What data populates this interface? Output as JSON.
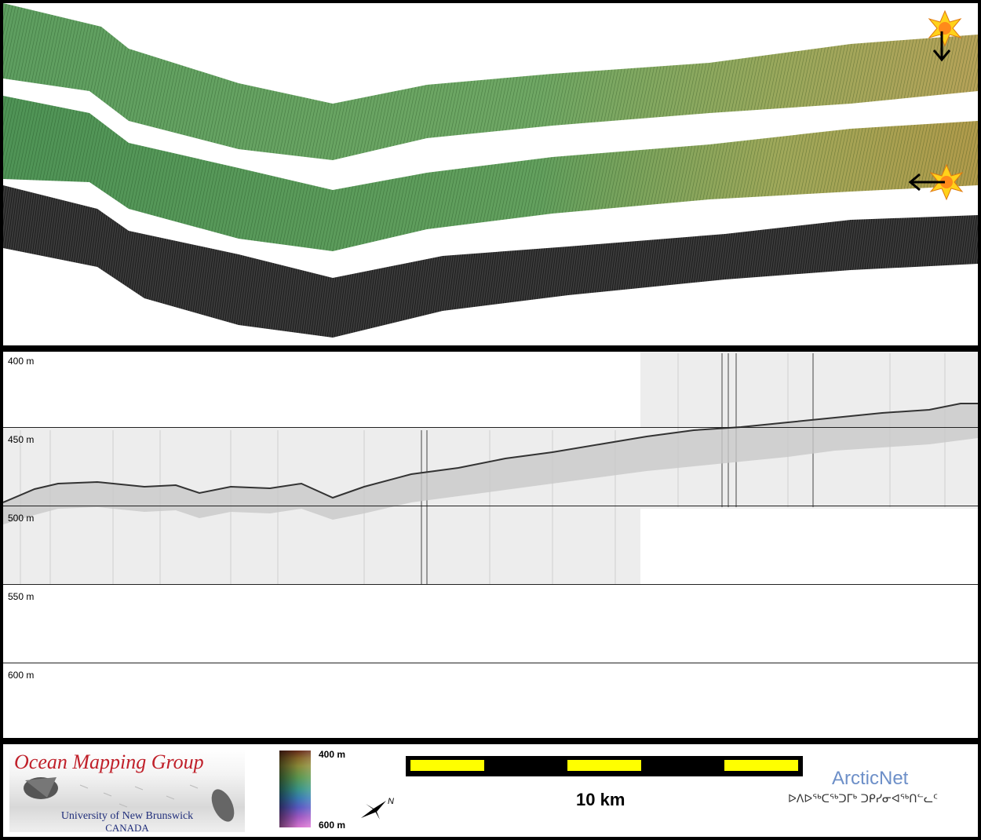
{
  "depth_grid": {
    "labels": [
      "400 m",
      "450 m",
      "500 m",
      "550 m",
      "600 m"
    ]
  },
  "footer": {
    "logo_title": "Ocean Mapping Group",
    "logo_university": "University of New Brunswick",
    "logo_country": "CANADA",
    "colorbar_top_label": "400 m",
    "colorbar_bottom_label": "600 m",
    "north_label": "N",
    "scale_label": "10 km",
    "partner_name": "ArcticNet",
    "partner_syllabics": "ᐅᐱᐅᖅᑕᖅᑐᒥᒃ ᑐᑭᓯᓂᐊᖅᑎᓪᓚᑦ"
  },
  "colors": {
    "swath_green_start": "#5a9a5c",
    "swath_green_end": "#b8a85a",
    "backscatter": "#2a2a2a",
    "scalebar_yellow": "#ffff00",
    "omg_red": "#c0202a",
    "arcticnet_blue": "#6d8fc8"
  },
  "icons": {
    "sun_marker": "sun-burst-icon",
    "arrow_down": "arrow-down-icon",
    "arrow_left": "arrow-left-icon",
    "north_arrow": "north-arrow-icon"
  }
}
